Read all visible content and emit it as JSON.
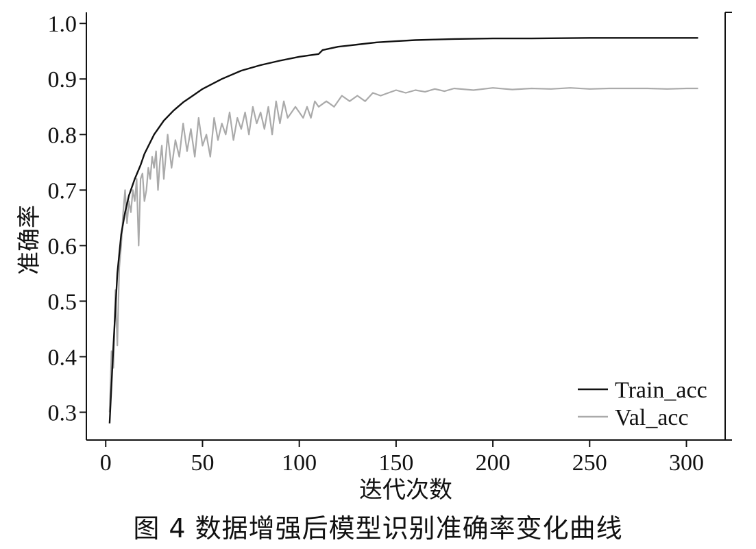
{
  "caption": "图 4  数据增强后模型识别准确率变化曲线",
  "chart_data": {
    "type": "line",
    "title": "",
    "xlabel": "迭代次数",
    "ylabel": "准确率",
    "xlim": [
      -10,
      320
    ],
    "ylim": [
      0.25,
      1.02
    ],
    "xticks": [
      0,
      50,
      100,
      150,
      200,
      250,
      300
    ],
    "yticks": [
      0.3,
      0.4,
      0.5,
      0.6,
      0.7,
      0.8,
      0.9,
      1.0
    ],
    "xtick_labels": [
      "0",
      "50",
      "100",
      "150",
      "200",
      "250",
      "300"
    ],
    "ytick_labels": [
      "0.3",
      "0.4",
      "0.5",
      "0.6",
      "0.7",
      "0.8",
      "0.9",
      "1.0"
    ],
    "grid": false,
    "legend_position": "bottom-right",
    "series": [
      {
        "name": "Train_acc",
        "color": "#111111",
        "x": [
          2,
          4,
          6,
          8,
          10,
          12,
          15,
          18,
          20,
          25,
          30,
          35,
          40,
          45,
          50,
          60,
          70,
          80,
          90,
          100,
          110,
          112,
          120,
          130,
          140,
          150,
          160,
          170,
          180,
          200,
          220,
          250,
          280,
          306
        ],
        "values": [
          0.28,
          0.42,
          0.55,
          0.62,
          0.66,
          0.69,
          0.72,
          0.745,
          0.765,
          0.8,
          0.825,
          0.843,
          0.858,
          0.87,
          0.882,
          0.9,
          0.915,
          0.925,
          0.933,
          0.94,
          0.945,
          0.952,
          0.958,
          0.962,
          0.966,
          0.968,
          0.97,
          0.971,
          0.972,
          0.973,
          0.973,
          0.974,
          0.974,
          0.974
        ]
      },
      {
        "name": "Val_acc",
        "color": "#aaaaaa",
        "x": [
          2,
          3,
          4,
          5,
          6,
          7,
          8,
          9,
          10,
          11,
          12,
          13,
          14,
          15,
          16,
          17,
          18,
          19,
          20,
          21,
          22,
          23,
          24,
          25,
          26,
          27,
          28,
          29,
          30,
          32,
          34,
          36,
          38,
          40,
          42,
          44,
          46,
          48,
          50,
          52,
          54,
          56,
          58,
          60,
          62,
          64,
          66,
          68,
          70,
          72,
          74,
          76,
          78,
          80,
          82,
          84,
          86,
          88,
          90,
          92,
          94,
          96,
          98,
          100,
          102,
          104,
          106,
          108,
          110,
          114,
          118,
          122,
          126,
          130,
          134,
          138,
          142,
          146,
          150,
          155,
          160,
          165,
          170,
          175,
          180,
          190,
          200,
          210,
          220,
          230,
          240,
          250,
          260,
          270,
          280,
          290,
          300,
          306
        ],
        "values": [
          0.3,
          0.41,
          0.38,
          0.52,
          0.42,
          0.56,
          0.6,
          0.66,
          0.7,
          0.64,
          0.68,
          0.66,
          0.7,
          0.68,
          0.72,
          0.6,
          0.72,
          0.73,
          0.68,
          0.7,
          0.74,
          0.72,
          0.76,
          0.74,
          0.77,
          0.7,
          0.75,
          0.78,
          0.72,
          0.8,
          0.74,
          0.79,
          0.76,
          0.82,
          0.77,
          0.81,
          0.76,
          0.83,
          0.78,
          0.8,
          0.76,
          0.83,
          0.79,
          0.82,
          0.8,
          0.84,
          0.79,
          0.83,
          0.81,
          0.84,
          0.8,
          0.85,
          0.82,
          0.84,
          0.81,
          0.85,
          0.8,
          0.86,
          0.82,
          0.86,
          0.83,
          0.84,
          0.85,
          0.84,
          0.83,
          0.85,
          0.83,
          0.86,
          0.85,
          0.86,
          0.85,
          0.87,
          0.86,
          0.87,
          0.86,
          0.875,
          0.87,
          0.875,
          0.88,
          0.875,
          0.88,
          0.877,
          0.882,
          0.878,
          0.883,
          0.88,
          0.884,
          0.881,
          0.883,
          0.882,
          0.884,
          0.882,
          0.883,
          0.883,
          0.883,
          0.882,
          0.883,
          0.883
        ]
      }
    ]
  }
}
